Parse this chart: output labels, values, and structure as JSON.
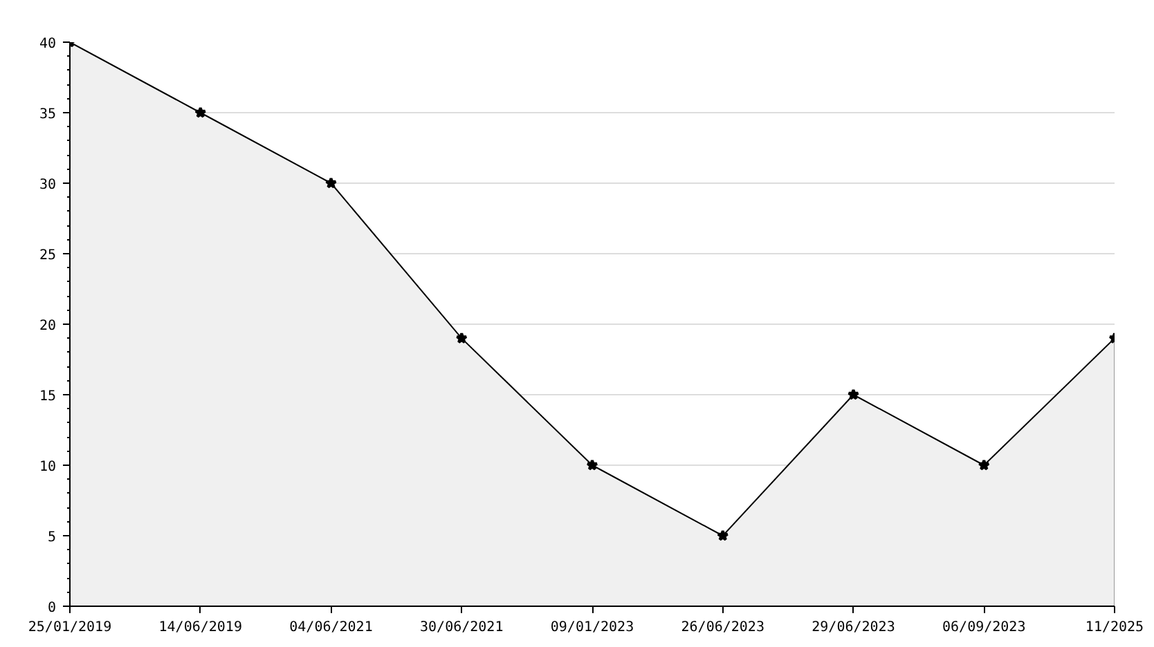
{
  "chart_data": {
    "type": "area",
    "categories": [
      "25/01/2019",
      "14/06/2019",
      "04/06/2021",
      "30/06/2021",
      "09/01/2023",
      "26/06/2023",
      "29/06/2023",
      "06/09/2023",
      "11/2025"
    ],
    "series": [
      {
        "color": "#000000",
        "values": [
          40,
          35,
          30,
          19,
          10,
          5,
          15,
          10,
          19
        ]
      }
    ],
    "ylim": [
      0,
      40
    ],
    "yticks": [
      0,
      5,
      10,
      15,
      20,
      25,
      30,
      35,
      40
    ],
    "grid": "y",
    "marker": "star",
    "line_style": "solid"
  }
}
